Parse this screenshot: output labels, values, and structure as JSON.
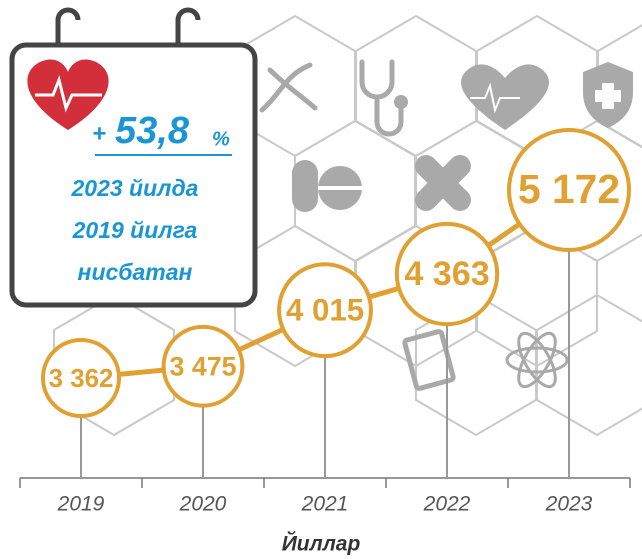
{
  "chart_data": {
    "type": "line",
    "categories": [
      "2019",
      "2020",
      "2021",
      "2022",
      "2023"
    ],
    "values": [
      3362,
      3475,
      4015,
      4363,
      5172
    ],
    "value_labels": [
      "3 362",
      "3 475",
      "4 015",
      "4 363",
      "5 172"
    ],
    "color": "#e0a032",
    "x_label": "Йиллар",
    "annotation": {
      "sign": "+",
      "value": "53,8",
      "unit": "%",
      "lines": [
        "2023 йилда",
        "2019 йилга",
        "нисбатан"
      ]
    }
  }
}
